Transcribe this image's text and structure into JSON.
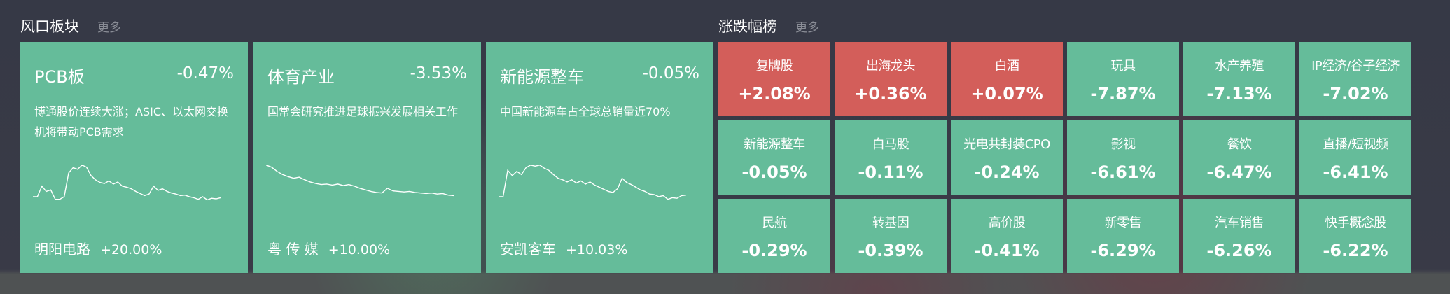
{
  "left": {
    "title": "风口板块",
    "more": "更多",
    "cards": [
      {
        "name": "PCB板",
        "pct": "-0.47%",
        "desc": "博通股价连续大涨；ASIC、以太网交换机将带动PCB需求",
        "stock": "明阳电路",
        "stock_pct": "+20.00%",
        "sparkline": [
          20,
          20,
          40,
          30,
          33,
          15,
          15,
          20,
          65,
          75,
          72,
          80,
          76,
          60,
          52,
          47,
          45,
          50,
          44,
          48,
          40,
          38,
          35,
          30,
          26,
          22,
          25,
          40,
          32,
          35,
          30,
          27,
          25,
          22,
          23,
          20,
          18,
          15,
          20,
          14,
          17,
          16,
          18
        ]
      },
      {
        "name": "体育产业",
        "pct": "-3.53%",
        "desc": "国常会研究推进足球振兴发展相关工作",
        "stock": "粤 传 媒",
        "stock_pct": "+10.00%",
        "sparkline": [
          80,
          76,
          68,
          62,
          58,
          55,
          57,
          52,
          48,
          45,
          43,
          44,
          42,
          44,
          41,
          43,
          40,
          36,
          33,
          30,
          28,
          27,
          36,
          31,
          30,
          29,
          30,
          28,
          27,
          26,
          27,
          25,
          26,
          23,
          22
        ]
      },
      {
        "name": "新能源整车",
        "pct": "-0.05%",
        "desc": "中国新能源车占全球总销量近70%",
        "stock": "安凯客车",
        "stock_pct": "+10.03%",
        "sparkline": [
          20,
          20,
          70,
          60,
          68,
          62,
          75,
          80,
          78,
          80,
          74,
          70,
          62,
          55,
          52,
          48,
          52,
          46,
          50,
          44,
          48,
          42,
          38,
          34,
          30,
          28,
          35,
          55,
          47,
          43,
          38,
          33,
          30,
          25,
          24,
          20,
          22,
          15,
          18,
          17,
          22,
          23
        ]
      }
    ]
  },
  "right": {
    "title": "涨跌幅榜",
    "more": "更多",
    "colors": {
      "up": "#d35e5a",
      "down": "#65bc9a"
    },
    "tiles": [
      {
        "name": "复牌股",
        "value": "+2.08%"
      },
      {
        "name": "出海龙头",
        "value": "+0.36%"
      },
      {
        "name": "白酒",
        "value": "+0.07%"
      },
      {
        "name": "玩具",
        "value": "-7.87%"
      },
      {
        "name": "水产养殖",
        "value": "-7.13%"
      },
      {
        "name": "IP经济/谷子经济",
        "value": "-7.02%"
      },
      {
        "name": "新能源整车",
        "value": "-0.05%"
      },
      {
        "name": "白马股",
        "value": "-0.11%"
      },
      {
        "name": "光电共封装CPO",
        "value": "-0.24%"
      },
      {
        "name": "影视",
        "value": "-6.61%"
      },
      {
        "name": "餐饮",
        "value": "-6.47%"
      },
      {
        "name": "直播/短视频",
        "value": "-6.41%"
      },
      {
        "name": "民航",
        "value": "-0.29%"
      },
      {
        "name": "转基因",
        "value": "-0.39%"
      },
      {
        "name": "高价股",
        "value": "-0.41%"
      },
      {
        "name": "新零售",
        "value": "-6.29%"
      },
      {
        "name": "汽车销售",
        "value": "-6.26%"
      },
      {
        "name": "快手概念股",
        "value": "-6.22%"
      }
    ]
  }
}
